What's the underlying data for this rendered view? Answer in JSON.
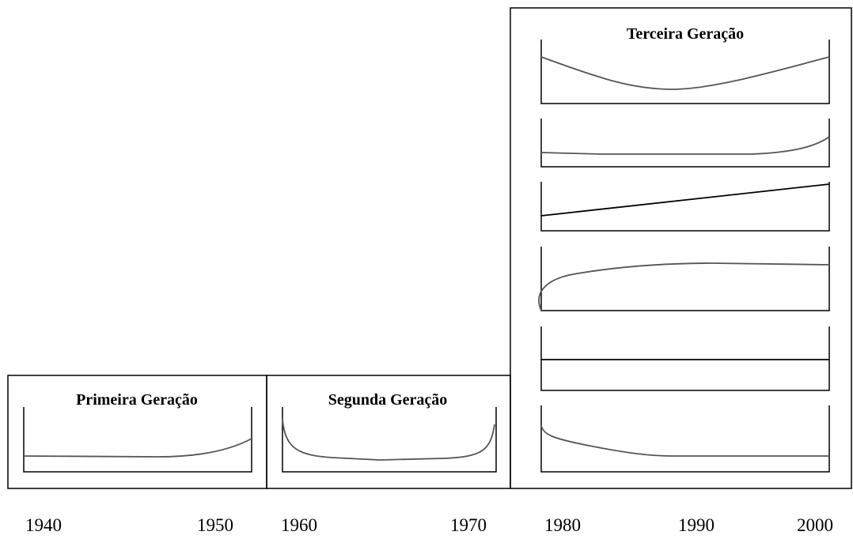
{
  "generations": [
    {
      "title": "Primeira Geração"
    },
    {
      "title": "Segunda Geração"
    },
    {
      "title": "Terceira Geração"
    }
  ],
  "years": [
    "1940",
    "1950",
    "1960",
    "1970",
    "1980",
    "1990",
    "2000"
  ]
}
